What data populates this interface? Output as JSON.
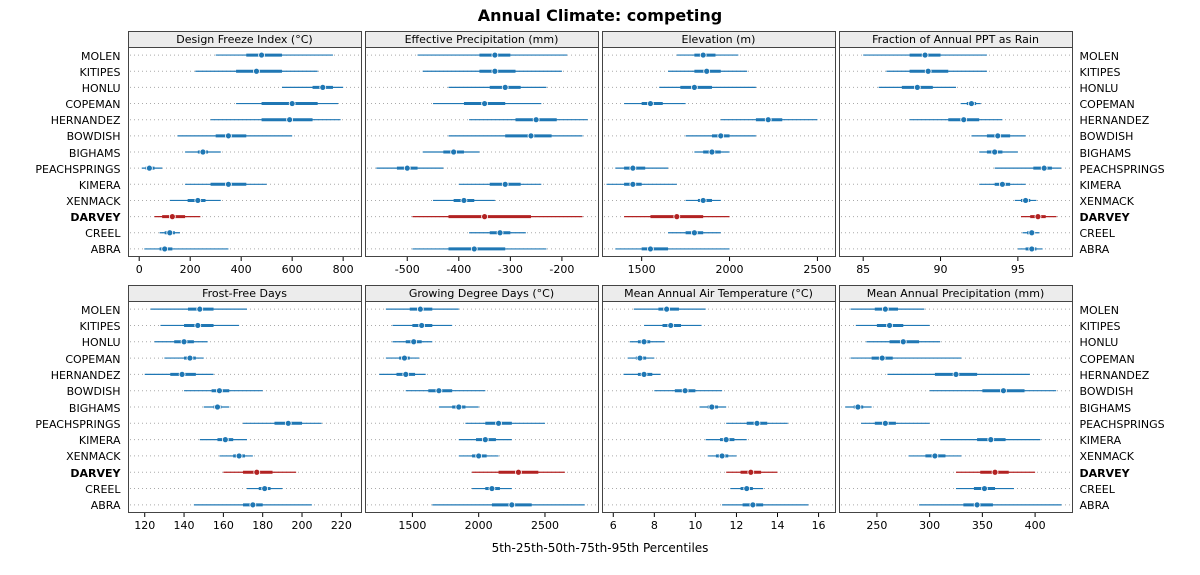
{
  "title": "Annual Climate: competing",
  "caption": "5th-25th-50th-75th-95th Percentiles",
  "stations": [
    "MOLEN",
    "KITIPES",
    "HONLU",
    "COPEMAN",
    "HERNANDEZ",
    "BOWDISH",
    "BIGHAMS",
    "PEACHSPRINGS",
    "KIMERA",
    "XENMACK",
    "DARVEY",
    "CREEL",
    "ABRA"
  ],
  "highlight_station": "DARVEY",
  "colors": {
    "normal": "#1f77b4",
    "highlight": "#b22222",
    "grid": "#aaaaaa",
    "strip_bg": "#ececec"
  },
  "chart_data": {
    "type": "percentile-dotplot",
    "percentiles": [
      5,
      25,
      50,
      75,
      95
    ],
    "layout": "2 rows x 4 columns, shared station axis, DARVEY highlighted",
    "panels": [
      {
        "title": "Design Freeze Index (°C)",
        "ticks": [
          0,
          200,
          400,
          600,
          800
        ],
        "domain": [
          -40,
          870
        ],
        "values": [
          [
            300,
            420,
            480,
            560,
            760
          ],
          [
            220,
            380,
            460,
            560,
            700
          ],
          [
            560,
            680,
            720,
            760,
            800
          ],
          [
            380,
            480,
            600,
            700,
            780
          ],
          [
            280,
            480,
            590,
            680,
            790
          ],
          [
            150,
            300,
            350,
            420,
            600
          ],
          [
            180,
            230,
            250,
            270,
            320
          ],
          [
            10,
            25,
            40,
            60,
            90
          ],
          [
            180,
            280,
            350,
            420,
            500
          ],
          [
            120,
            190,
            230,
            260,
            320
          ],
          [
            60,
            90,
            130,
            180,
            240
          ],
          [
            80,
            100,
            120,
            140,
            160
          ],
          [
            20,
            80,
            100,
            130,
            350
          ]
        ]
      },
      {
        "title": "Effective Precipitation (mm)",
        "ticks": [
          -500,
          -400,
          -300,
          -200
        ],
        "domain": [
          -580,
          -130
        ],
        "values": [
          [
            -480,
            -360,
            -330,
            -300,
            -190
          ],
          [
            -470,
            -360,
            -330,
            -290,
            -200
          ],
          [
            -420,
            -340,
            -310,
            -280,
            -230
          ],
          [
            -450,
            -390,
            -350,
            -310,
            -240
          ],
          [
            -380,
            -290,
            -250,
            -210,
            -150
          ],
          [
            -420,
            -310,
            -260,
            -220,
            -160
          ],
          [
            -470,
            -430,
            -410,
            -390,
            -360
          ],
          [
            -560,
            -520,
            -500,
            -480,
            -430
          ],
          [
            -400,
            -340,
            -310,
            -280,
            -240
          ],
          [
            -450,
            -410,
            -390,
            -370,
            -330
          ],
          [
            -490,
            -420,
            -350,
            -260,
            -160
          ],
          [
            -380,
            -340,
            -320,
            -300,
            -270
          ],
          [
            -490,
            -420,
            -370,
            -310,
            -230
          ]
        ]
      },
      {
        "title": "Elevation (m)",
        "ticks": [
          1500,
          2000,
          2500
        ],
        "domain": [
          1280,
          2600
        ],
        "values": [
          [
            1700,
            1800,
            1850,
            1920,
            2050
          ],
          [
            1650,
            1800,
            1870,
            1950,
            2100
          ],
          [
            1600,
            1720,
            1800,
            1900,
            2150
          ],
          [
            1400,
            1500,
            1550,
            1620,
            1750
          ],
          [
            1950,
            2150,
            2220,
            2300,
            2500
          ],
          [
            1750,
            1900,
            1950,
            2000,
            2150
          ],
          [
            1800,
            1850,
            1900,
            1950,
            2000
          ],
          [
            1350,
            1400,
            1450,
            1520,
            1650
          ],
          [
            1300,
            1400,
            1450,
            1500,
            1700
          ],
          [
            1750,
            1820,
            1850,
            1900,
            1950
          ],
          [
            1400,
            1550,
            1700,
            1850,
            2000
          ],
          [
            1650,
            1750,
            1800,
            1850,
            1950
          ],
          [
            1350,
            1500,
            1550,
            1650,
            2000
          ]
        ]
      },
      {
        "title": "Fraction of Annual PPT as Rain",
        "ticks": [
          85,
          90,
          95
        ],
        "domain": [
          83.5,
          98.5
        ],
        "values": [
          [
            85,
            88,
            89,
            90,
            93
          ],
          [
            86.5,
            88,
            89.2,
            90.5,
            93
          ],
          [
            86,
            87.5,
            88.5,
            89.5,
            91
          ],
          [
            91.3,
            91.7,
            92,
            92.3,
            92.6
          ],
          [
            88,
            90.5,
            91.5,
            92.5,
            94
          ],
          [
            92,
            93,
            93.7,
            94.5,
            95.5
          ],
          [
            92.5,
            93,
            93.5,
            94,
            95
          ],
          [
            93.5,
            96,
            96.7,
            97.2,
            97.8
          ],
          [
            92.5,
            93.5,
            94,
            94.5,
            95.5
          ],
          [
            94.8,
            95.2,
            95.5,
            95.8,
            96.2
          ],
          [
            95.2,
            95.8,
            96.3,
            96.8,
            97.5
          ],
          [
            95.3,
            95.6,
            95.9,
            96.1,
            96.4
          ],
          [
            95,
            95.5,
            95.9,
            96.2,
            96.6
          ]
        ]
      },
      {
        "title": "Frost-Free Days",
        "ticks": [
          120,
          140,
          160,
          180,
          200,
          220
        ],
        "domain": [
          112,
          230
        ],
        "values": [
          [
            123,
            142,
            148,
            155,
            172
          ],
          [
            128,
            140,
            147,
            155,
            168
          ],
          [
            125,
            135,
            140,
            145,
            152
          ],
          [
            130,
            140,
            143,
            146,
            150
          ],
          [
            120,
            133,
            139,
            146,
            155
          ],
          [
            140,
            154,
            158,
            163,
            180
          ],
          [
            150,
            155,
            157,
            159,
            163
          ],
          [
            170,
            186,
            193,
            200,
            210
          ],
          [
            148,
            157,
            161,
            165,
            172
          ],
          [
            158,
            165,
            168,
            171,
            175
          ],
          [
            160,
            170,
            177,
            185,
            197
          ],
          [
            172,
            178,
            181,
            184,
            190
          ],
          [
            145,
            170,
            175,
            180,
            205
          ]
        ]
      },
      {
        "title": "Growing Degree Days (°C)",
        "ticks": [
          1500,
          2000,
          2500
        ],
        "domain": [
          1150,
          2900
        ],
        "values": [
          [
            1300,
            1480,
            1560,
            1650,
            1850
          ],
          [
            1350,
            1500,
            1570,
            1650,
            1800
          ],
          [
            1350,
            1450,
            1510,
            1570,
            1650
          ],
          [
            1300,
            1400,
            1440,
            1480,
            1550
          ],
          [
            1250,
            1380,
            1450,
            1520,
            1600
          ],
          [
            1450,
            1620,
            1700,
            1800,
            2050
          ],
          [
            1700,
            1800,
            1850,
            1900,
            2000
          ],
          [
            1900,
            2050,
            2150,
            2250,
            2500
          ],
          [
            1850,
            1980,
            2050,
            2130,
            2250
          ],
          [
            1850,
            1950,
            2000,
            2060,
            2150
          ],
          [
            1950,
            2150,
            2300,
            2450,
            2650
          ],
          [
            1950,
            2050,
            2100,
            2160,
            2250
          ],
          [
            1650,
            2100,
            2250,
            2400,
            2800
          ]
        ]
      },
      {
        "title": "Mean Annual Air Temperature (°C)",
        "ticks": [
          6,
          8,
          10,
          12,
          14,
          16
        ],
        "domain": [
          5.5,
          16.8
        ],
        "values": [
          [
            7.0,
            8.2,
            8.6,
            9.2,
            10.5
          ],
          [
            7.5,
            8.4,
            8.8,
            9.3,
            10.3
          ],
          [
            6.8,
            7.2,
            7.5,
            7.8,
            8.5
          ],
          [
            6.7,
            7.1,
            7.3,
            7.6,
            8.0
          ],
          [
            6.5,
            7.2,
            7.5,
            7.9,
            8.3
          ],
          [
            8.0,
            9.0,
            9.5,
            10.0,
            11.3
          ],
          [
            10.2,
            10.6,
            10.8,
            11.1,
            11.5
          ],
          [
            11.5,
            12.5,
            13.0,
            13.5,
            14.5
          ],
          [
            10.5,
            11.2,
            11.5,
            11.9,
            12.5
          ],
          [
            10.6,
            11.0,
            11.3,
            11.6,
            12.0
          ],
          [
            11.5,
            12.2,
            12.7,
            13.2,
            14.0
          ],
          [
            11.7,
            12.2,
            12.5,
            12.8,
            13.3
          ],
          [
            11.3,
            12.3,
            12.8,
            13.3,
            15.5
          ]
        ]
      },
      {
        "title": "Mean Annual Precipitation (mm)",
        "ticks": [
          250,
          300,
          350,
          400
        ],
        "domain": [
          215,
          435
        ],
        "values": [
          [
            225,
            248,
            258,
            270,
            295
          ],
          [
            230,
            250,
            262,
            275,
            300
          ],
          [
            240,
            262,
            275,
            290,
            310
          ],
          [
            225,
            245,
            255,
            265,
            330
          ],
          [
            260,
            305,
            325,
            345,
            395
          ],
          [
            300,
            350,
            370,
            390,
            420
          ],
          [
            220,
            228,
            232,
            237,
            245
          ],
          [
            235,
            248,
            258,
            268,
            300
          ],
          [
            310,
            345,
            358,
            372,
            405
          ],
          [
            280,
            296,
            305,
            315,
            330
          ],
          [
            325,
            348,
            362,
            375,
            400
          ],
          [
            325,
            342,
            352,
            362,
            380
          ],
          [
            290,
            332,
            345,
            360,
            425
          ]
        ]
      }
    ]
  }
}
